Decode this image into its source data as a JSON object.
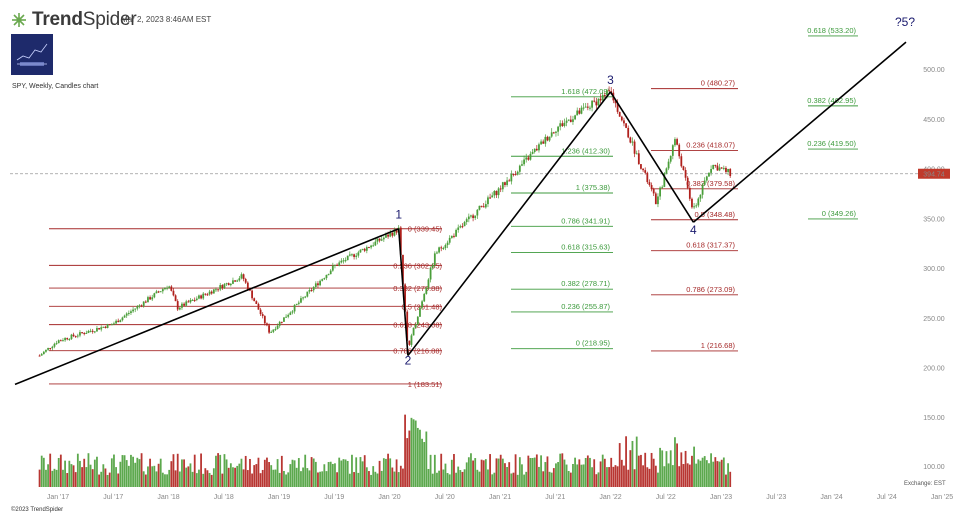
{
  "header": {
    "brand_bold": "Trend",
    "brand_light": "Spider",
    "timestamp": "Mar 2, 2023 8:46AM EST",
    "symbol_line": "SPY, Weekly, Candles chart",
    "copyright": "©2023 TrendSpider",
    "exchange": "Exchange: EST"
  },
  "chart_data": {
    "type": "candlestick",
    "title": "SPY, Weekly, Candles chart",
    "ylim": [
      140,
      530
    ],
    "y_ticks": [
      100,
      150,
      200,
      250,
      300,
      350,
      400,
      450,
      500
    ],
    "x_ticks": [
      "Jan '17",
      "Jul '17",
      "Jan '18",
      "Jul '18",
      "Jan '19",
      "Jul '19",
      "Jan '20",
      "Jul '20",
      "Jan '21",
      "Jul '21",
      "Jan '22",
      "Jul '22",
      "Jan '23",
      "Jul '23",
      "Jan '24",
      "Jul '24",
      "Jan '25"
    ],
    "last_price": "394.74",
    "colors": {
      "up": "#4a9e3a",
      "down": "#b0201c",
      "fib_green": "#3c9a3c",
      "fib_red": "#a52a2a",
      "wave": "#1a1a6e"
    },
    "price_anchors": [
      {
        "date": "Nov '16",
        "close": 212
      },
      {
        "date": "Jan '17",
        "close": 227
      },
      {
        "date": "Jul '17",
        "close": 244
      },
      {
        "date": "Jan '18",
        "close": 283
      },
      {
        "date": "Feb '18",
        "close": 260
      },
      {
        "date": "Sep '18",
        "close": 292
      },
      {
        "date": "Dec '18",
        "close": 235
      },
      {
        "date": "Jul '19",
        "close": 302
      },
      {
        "date": "Feb '20",
        "close": 339
      },
      {
        "date": "Mar '20",
        "close": 218
      },
      {
        "date": "Jun '20",
        "close": 315
      },
      {
        "date": "Nov '20",
        "close": 362
      },
      {
        "date": "Jan '21",
        "close": 380
      },
      {
        "date": "Jul '21",
        "close": 440
      },
      {
        "date": "Jan '22",
        "close": 477
      },
      {
        "date": "Jun '22",
        "close": 365
      },
      {
        "date": "Aug '22",
        "close": 430
      },
      {
        "date": "Oct '22",
        "close": 357
      },
      {
        "date": "Dec '22",
        "close": 404
      },
      {
        "date": "Feb '23",
        "close": 395
      }
    ],
    "waves": [
      {
        "label": "1",
        "date": "Feb '20",
        "price": 339.45
      },
      {
        "label": "2",
        "date": "Mar '20",
        "price": 216.88
      },
      {
        "label": "3",
        "date": "Jan '22",
        "price": 477
      },
      {
        "label": "4",
        "date": "Oct '22",
        "price": 348.48
      },
      {
        "label": "?5?",
        "date": "Jan '25",
        "price": 533
      }
    ],
    "fib_sets": [
      {
        "name": "wave1 retracement",
        "color": "red",
        "levels": [
          {
            "text": "0 (339.45)",
            "price": 339.45
          },
          {
            "text": "0.236 (302.65)",
            "price": 302.65
          },
          {
            "text": "0.382 (279.88)",
            "price": 279.88
          },
          {
            "text": "0.5 (261.48)",
            "price": 261.48
          },
          {
            "text": "0.618 (243.08)",
            "price": 243.08
          },
          {
            "text": "0.786 (216.88)",
            "price": 216.88
          },
          {
            "text": "1 (183.51)",
            "price": 183.51
          }
        ]
      },
      {
        "name": "wave3 extension",
        "color": "green",
        "levels": [
          {
            "text": "1.618 (472.09)",
            "price": 472.09
          },
          {
            "text": "1.236 (412.30)",
            "price": 412.3
          },
          {
            "text": "1 (375.38)",
            "price": 375.38
          },
          {
            "text": "0.786 (341.91)",
            "price": 341.91
          },
          {
            "text": "0.618 (315.63)",
            "price": 315.63
          },
          {
            "text": "0.382 (278.71)",
            "price": 278.71
          },
          {
            "text": "0.236 (255.87)",
            "price": 255.87
          },
          {
            "text": "0 (218.95)",
            "price": 218.95
          }
        ]
      },
      {
        "name": "wave3 retracement",
        "color": "red",
        "levels": [
          {
            "text": "0 (480.27)",
            "price": 480.27
          },
          {
            "text": "0.236 (418.07)",
            "price": 418.07
          },
          {
            "text": "0.382 (379.58)",
            "price": 379.58
          },
          {
            "text": "0.5 (348.48)",
            "price": 348.48
          },
          {
            "text": "0.618 (317.37)",
            "price": 317.37
          },
          {
            "text": "0.786 (273.09)",
            "price": 273.09
          },
          {
            "text": "1 (216.68)",
            "price": 216.68
          }
        ]
      },
      {
        "name": "wave5 projection",
        "color": "green",
        "levels": [
          {
            "text": "0.618 (533.20)",
            "price": 533.2
          },
          {
            "text": "0.382 (462.95)",
            "price": 462.95
          },
          {
            "text": "0.236 (419.50)",
            "price": 419.5
          },
          {
            "text": "0 (349.26)",
            "price": 349.26
          }
        ]
      }
    ],
    "volume_ticks": [
      100,
      150
    ]
  }
}
